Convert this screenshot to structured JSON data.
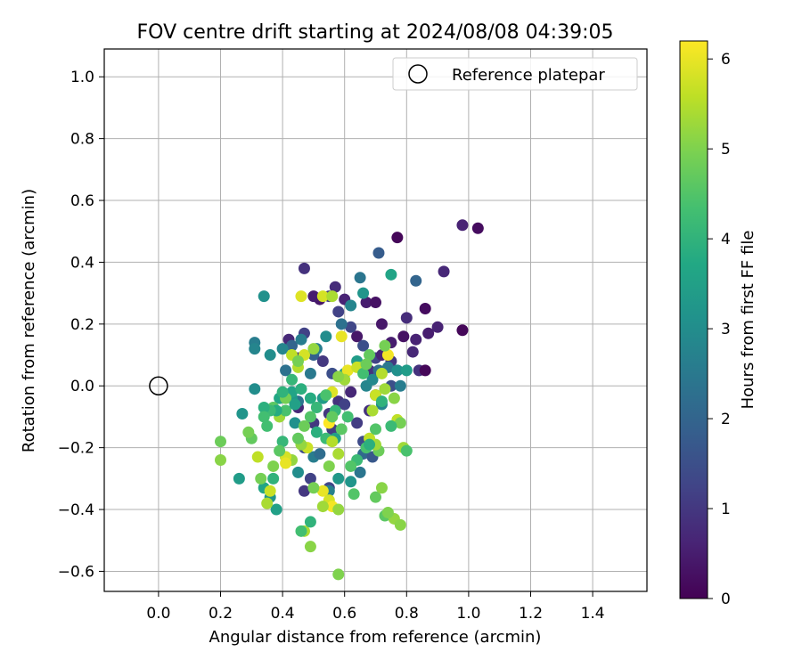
{
  "chart_data": {
    "type": "scatter",
    "title": "FOV centre drift starting at 2024/08/08 04:39:05",
    "xlabel": "Angular distance from reference (arcmin)",
    "ylabel": "Rotation from reference (arcmin)",
    "xlim": [
      -0.175,
      1.575
    ],
    "ylim": [
      -0.665,
      1.09
    ],
    "xticks": [
      "0.0",
      "0.2",
      "0.4",
      "0.6",
      "0.8",
      "1.0",
      "1.2",
      "1.4"
    ],
    "yticks": [
      "1.0",
      "0.8",
      "0.6",
      "0.4",
      "0.2",
      "0.0",
      "−0.2",
      "−0.4",
      "−0.6"
    ],
    "grid": true,
    "legend": {
      "placement": "top-right",
      "entries": [
        "Reference platepar"
      ]
    },
    "reference_point": {
      "x": 0.0,
      "y": 0.0
    },
    "colorbar": {
      "label": "Hours from first FF file",
      "colormap": "viridis",
      "range": [
        0,
        6.2
      ],
      "ticks": [
        "0",
        "1",
        "2",
        "3",
        "4",
        "5",
        "6"
      ]
    },
    "series": [
      {
        "points": [
          [
            0.52,
            0.28,
            0.4
          ],
          [
            0.42,
            0.15,
            0.7
          ],
          [
            0.47,
            0.38,
            0.9
          ],
          [
            0.6,
            0.28,
            0.6
          ],
          [
            0.64,
            0.16,
            0.4
          ],
          [
            0.67,
            0.27,
            0.5
          ],
          [
            0.7,
            0.27,
            0.3
          ],
          [
            0.72,
            0.2,
            0.4
          ],
          [
            0.75,
            0.14,
            0.5
          ],
          [
            0.79,
            0.16,
            0.3
          ],
          [
            0.8,
            0.22,
            0.8
          ],
          [
            0.83,
            0.15,
            0.6
          ],
          [
            0.84,
            0.05,
            0.9
          ],
          [
            0.86,
            0.25,
            0.2
          ],
          [
            0.87,
            0.17,
            0.5
          ],
          [
            0.9,
            0.19,
            0.6
          ],
          [
            0.92,
            0.37,
            0.7
          ],
          [
            0.77,
            0.48,
            0.1
          ],
          [
            0.98,
            0.52,
            0.6
          ],
          [
            1.03,
            0.51,
            0.2
          ],
          [
            0.98,
            0.18,
            0.1
          ],
          [
            0.86,
            0.05,
            0.1
          ],
          [
            0.82,
            0.11,
            0.7
          ],
          [
            0.75,
            0.08,
            1.0
          ],
          [
            0.7,
            0.09,
            1.2
          ],
          [
            0.68,
            0.05,
            0.9
          ],
          [
            0.66,
            0.13,
            1.5
          ],
          [
            0.62,
            0.19,
            1.3
          ],
          [
            0.58,
            0.24,
            1.2
          ],
          [
            0.57,
            0.32,
            0.8
          ],
          [
            0.55,
            0.29,
            1.1
          ],
          [
            0.5,
            0.29,
            0.5
          ],
          [
            0.47,
            0.17,
            1.2
          ],
          [
            0.45,
            0.09,
            1.1
          ],
          [
            0.43,
            0.13,
            2.0
          ],
          [
            0.41,
            0.05,
            2.3
          ],
          [
            0.5,
            0.1,
            1.9
          ],
          [
            0.53,
            0.08,
            1.0
          ],
          [
            0.56,
            0.04,
            1.5
          ],
          [
            0.58,
            -0.05,
            0.9
          ],
          [
            0.55,
            -0.09,
            1.0
          ],
          [
            0.53,
            -0.04,
            1.3
          ],
          [
            0.5,
            -0.12,
            1.0
          ],
          [
            0.47,
            -0.2,
            1.4
          ],
          [
            0.45,
            -0.07,
            0.7
          ],
          [
            0.49,
            -0.3,
            1.2
          ],
          [
            0.47,
            -0.34,
            1.0
          ],
          [
            0.55,
            -0.33,
            1.3
          ],
          [
            0.56,
            -0.14,
            1.1
          ],
          [
            0.6,
            -0.06,
            1.2
          ],
          [
            0.62,
            -0.02,
            0.7
          ],
          [
            0.64,
            -0.12,
            1.1
          ],
          [
            0.66,
            -0.18,
            1.4
          ],
          [
            0.68,
            -0.08,
            0.9
          ],
          [
            0.7,
            -0.03,
            1.0
          ],
          [
            0.72,
            0.1,
            0.6
          ],
          [
            0.75,
            0.0,
            1.5
          ],
          [
            0.77,
            0.05,
            1.8
          ],
          [
            0.83,
            0.34,
            2.0
          ],
          [
            0.71,
            0.43,
            1.8
          ],
          [
            0.65,
            0.35,
            2.4
          ],
          [
            0.62,
            0.26,
            2.8
          ],
          [
            0.59,
            0.2,
            2.3
          ],
          [
            0.54,
            0.16,
            3.0
          ],
          [
            0.51,
            0.12,
            2.6
          ],
          [
            0.46,
            0.15,
            2.6
          ],
          [
            0.4,
            0.12,
            2.8
          ],
          [
            0.36,
            0.1,
            3.0
          ],
          [
            0.31,
            0.14,
            2.6
          ],
          [
            0.31,
            0.12,
            2.8
          ],
          [
            0.34,
            0.29,
            3.1
          ],
          [
            0.31,
            -0.01,
            3.0
          ],
          [
            0.27,
            -0.09,
            3.2
          ],
          [
            0.26,
            -0.3,
            3.4
          ],
          [
            0.34,
            -0.33,
            3.6
          ],
          [
            0.36,
            -0.36,
            3.2
          ],
          [
            0.38,
            -0.4,
            3.5
          ],
          [
            0.41,
            -0.23,
            3.3
          ],
          [
            0.44,
            -0.12,
            3.1
          ],
          [
            0.45,
            -0.28,
            3.0
          ],
          [
            0.5,
            -0.23,
            2.6
          ],
          [
            0.52,
            -0.22,
            2.2
          ],
          [
            0.55,
            -0.34,
            2.7
          ],
          [
            0.58,
            -0.3,
            3.3
          ],
          [
            0.62,
            -0.31,
            3.2
          ],
          [
            0.65,
            -0.28,
            2.4
          ],
          [
            0.66,
            -0.22,
            2.1
          ],
          [
            0.69,
            -0.23,
            1.7
          ],
          [
            0.67,
            0.0,
            2.8
          ],
          [
            0.69,
            0.02,
            2.9
          ],
          [
            0.71,
            0.05,
            2.2
          ],
          [
            0.74,
            0.06,
            2.5
          ],
          [
            0.77,
            0.05,
            3.1
          ],
          [
            0.8,
            0.05,
            3.4
          ],
          [
            0.78,
            0.0,
            2.6
          ],
          [
            0.72,
            -0.06,
            2.8
          ],
          [
            0.66,
            0.3,
            3.2
          ],
          [
            0.64,
            0.08,
            3.4
          ],
          [
            0.6,
            0.04,
            3.3
          ],
          [
            0.57,
            -0.17,
            3.5
          ],
          [
            0.53,
            -0.04,
            3.4
          ],
          [
            0.49,
            0.04,
            2.5
          ],
          [
            0.45,
            -0.05,
            2.4
          ],
          [
            0.43,
            -0.04,
            3.3
          ],
          [
            0.39,
            -0.04,
            3.7
          ],
          [
            0.37,
            -0.3,
            4.0
          ],
          [
            0.4,
            -0.18,
            4.1
          ],
          [
            0.43,
            -0.02,
            3.6
          ],
          [
            0.46,
            -0.01,
            3.9
          ],
          [
            0.49,
            -0.04,
            3.8
          ],
          [
            0.51,
            -0.15,
            3.9
          ],
          [
            0.54,
            -0.17,
            4.2
          ],
          [
            0.57,
            -0.08,
            4.1
          ],
          [
            0.61,
            -0.1,
            4.3
          ],
          [
            0.63,
            -0.35,
            4.5
          ],
          [
            0.67,
            -0.2,
            4.4
          ],
          [
            0.7,
            -0.36,
            4.7
          ],
          [
            0.73,
            -0.42,
            4.6
          ],
          [
            0.76,
            -0.43,
            5.2
          ],
          [
            0.78,
            -0.45,
            5.1
          ],
          [
            0.74,
            -0.41,
            5.0
          ],
          [
            0.72,
            -0.33,
            5.1
          ],
          [
            0.71,
            -0.21,
            4.8
          ],
          [
            0.7,
            -0.19,
            5.3
          ],
          [
            0.68,
            -0.17,
            5.6
          ],
          [
            0.69,
            -0.08,
            5.4
          ],
          [
            0.7,
            -0.03,
            5.7
          ],
          [
            0.72,
            0.04,
            5.5
          ],
          [
            0.74,
            0.1,
            6.1
          ],
          [
            0.73,
            0.13,
            4.9
          ],
          [
            0.75,
            0.36,
            3.6
          ],
          [
            0.68,
            0.1,
            4.7
          ],
          [
            0.65,
            0.06,
            4.9
          ],
          [
            0.61,
            0.05,
            6.0
          ],
          [
            0.6,
            0.02,
            5.3
          ],
          [
            0.58,
            0.03,
            5.1
          ],
          [
            0.56,
            -0.02,
            5.9
          ],
          [
            0.55,
            -0.12,
            6.2
          ],
          [
            0.56,
            -0.18,
            5.5
          ],
          [
            0.58,
            -0.22,
            5.4
          ],
          [
            0.55,
            -0.26,
            5.0
          ],
          [
            0.53,
            -0.34,
            6.0
          ],
          [
            0.55,
            -0.37,
            5.8
          ],
          [
            0.56,
            -0.39,
            6.1
          ],
          [
            0.58,
            -0.4,
            5.2
          ],
          [
            0.58,
            -0.61,
            5.0
          ],
          [
            0.53,
            -0.39,
            5.3
          ],
          [
            0.5,
            -0.33,
            4.9
          ],
          [
            0.49,
            -0.52,
            5.1
          ],
          [
            0.47,
            -0.47,
            5.4
          ],
          [
            0.46,
            -0.47,
            4.3
          ],
          [
            0.49,
            -0.44,
            4.0
          ],
          [
            0.48,
            -0.2,
            5.7
          ],
          [
            0.46,
            -0.19,
            5.2
          ],
          [
            0.45,
            -0.17,
            4.7
          ],
          [
            0.43,
            -0.24,
            5.2
          ],
          [
            0.41,
            -0.23,
            5.8
          ],
          [
            0.41,
            -0.25,
            6.0
          ],
          [
            0.39,
            -0.21,
            4.6
          ],
          [
            0.37,
            -0.26,
            5.0
          ],
          [
            0.36,
            -0.34,
            5.7
          ],
          [
            0.35,
            -0.38,
            5.4
          ],
          [
            0.33,
            -0.3,
            4.9
          ],
          [
            0.32,
            -0.23,
            5.6
          ],
          [
            0.3,
            -0.17,
            4.7
          ],
          [
            0.29,
            -0.15,
            4.9
          ],
          [
            0.2,
            -0.18,
            4.8
          ],
          [
            0.2,
            -0.24,
            5.1
          ],
          [
            0.37,
            -0.07,
            4.6
          ],
          [
            0.35,
            -0.13,
            4.3
          ],
          [
            0.39,
            -0.1,
            5.3
          ],
          [
            0.41,
            -0.08,
            4.4
          ],
          [
            0.43,
            0.1,
            5.6
          ],
          [
            0.45,
            0.06,
            5.5
          ],
          [
            0.47,
            0.1,
            5.8
          ],
          [
            0.5,
            0.12,
            5.2
          ],
          [
            0.46,
            0.29,
            5.9
          ],
          [
            0.53,
            0.29,
            5.8
          ],
          [
            0.56,
            0.29,
            5.4
          ],
          [
            0.59,
            0.16,
            6.0
          ],
          [
            0.64,
            0.06,
            5.7
          ],
          [
            0.66,
            0.04,
            4.3
          ],
          [
            0.67,
            0.07,
            4.8
          ],
          [
            0.73,
            -0.01,
            5.3
          ],
          [
            0.76,
            -0.04,
            5.1
          ],
          [
            0.77,
            -0.11,
            5.6
          ],
          [
            0.78,
            -0.12,
            4.9
          ],
          [
            0.79,
            -0.2,
            5.3
          ],
          [
            0.8,
            -0.21,
            4.4
          ],
          [
            0.75,
            -0.13,
            4.2
          ],
          [
            0.72,
            -0.05,
            4.0
          ],
          [
            0.7,
            -0.14,
            4.5
          ],
          [
            0.68,
            -0.19,
            3.9
          ],
          [
            0.64,
            -0.24,
            4.2
          ],
          [
            0.62,
            -0.26,
            4.5
          ],
          [
            0.59,
            -0.14,
            4.6
          ],
          [
            0.56,
            -0.1,
            4.7
          ],
          [
            0.54,
            -0.03,
            4.4
          ],
          [
            0.51,
            -0.07,
            4.1
          ],
          [
            0.49,
            -0.1,
            4.5
          ],
          [
            0.47,
            -0.13,
            4.8
          ],
          [
            0.45,
            0.08,
            4.9
          ],
          [
            0.43,
            0.02,
            4.1
          ],
          [
            0.41,
            -0.04,
            4.9
          ],
          [
            0.4,
            -0.02,
            4.0
          ],
          [
            0.38,
            -0.08,
            3.8
          ],
          [
            0.36,
            -0.08,
            4.2
          ],
          [
            0.34,
            -0.07,
            3.9
          ],
          [
            0.34,
            -0.1,
            4.3
          ],
          [
            0.44,
            -0.06,
            3.5
          ]
        ]
      }
    ]
  }
}
